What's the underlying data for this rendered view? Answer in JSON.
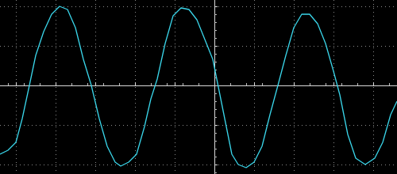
{
  "chart_data": {
    "type": "line",
    "color": "#3ad6ea",
    "grid": true,
    "tick_labels": false,
    "xlim": [
      -5.4,
      4.6
    ],
    "ylim": [
      -2.24,
      2.16
    ],
    "xticks": [
      -5,
      -4,
      -3,
      -2,
      -1,
      0,
      1,
      2,
      3,
      4
    ],
    "yticks": [
      -2,
      -1,
      0,
      1,
      2
    ],
    "x": [
      -5.4,
      -5.2,
      -5.0,
      -4.84,
      -4.66,
      -4.5,
      -4.3,
      -4.1,
      -3.9,
      -3.7,
      -3.5,
      -3.3,
      -3.1,
      -2.9,
      -2.7,
      -2.5,
      -2.36,
      -2.16,
      -1.96,
      -1.76,
      -1.6,
      -1.44,
      -1.24,
      -1.04,
      -0.84,
      -0.64,
      -0.44,
      -0.24,
      -0.04,
      0.1,
      0.3,
      0.44,
      0.6,
      0.8,
      1.0,
      1.2,
      1.4,
      1.6,
      1.8,
      2.0,
      2.2,
      2.4,
      2.6,
      2.8,
      3.0,
      3.16,
      3.36,
      3.56,
      3.8,
      4.04,
      4.24,
      4.44,
      4.6
    ],
    "values": [
      -1.74,
      -1.64,
      -1.44,
      -0.84,
      0,
      0.76,
      1.36,
      1.8,
      2.0,
      1.92,
      1.46,
      0.66,
      0,
      -0.84,
      -1.54,
      -1.94,
      -2.04,
      -1.94,
      -1.74,
      -1.04,
      -0.34,
      0.16,
      1.06,
      1.76,
      1.96,
      1.92,
      1.66,
      1.16,
      0.66,
      -0.04,
      -1.04,
      -1.74,
      -2.0,
      -2.08,
      -1.94,
      -1.54,
      -0.74,
      0,
      0.76,
      1.46,
      1.8,
      1.8,
      1.56,
      1.06,
      0.36,
      -0.24,
      -1.24,
      -1.84,
      -2.0,
      -1.84,
      -1.44,
      -0.74,
      -0.4
    ]
  }
}
